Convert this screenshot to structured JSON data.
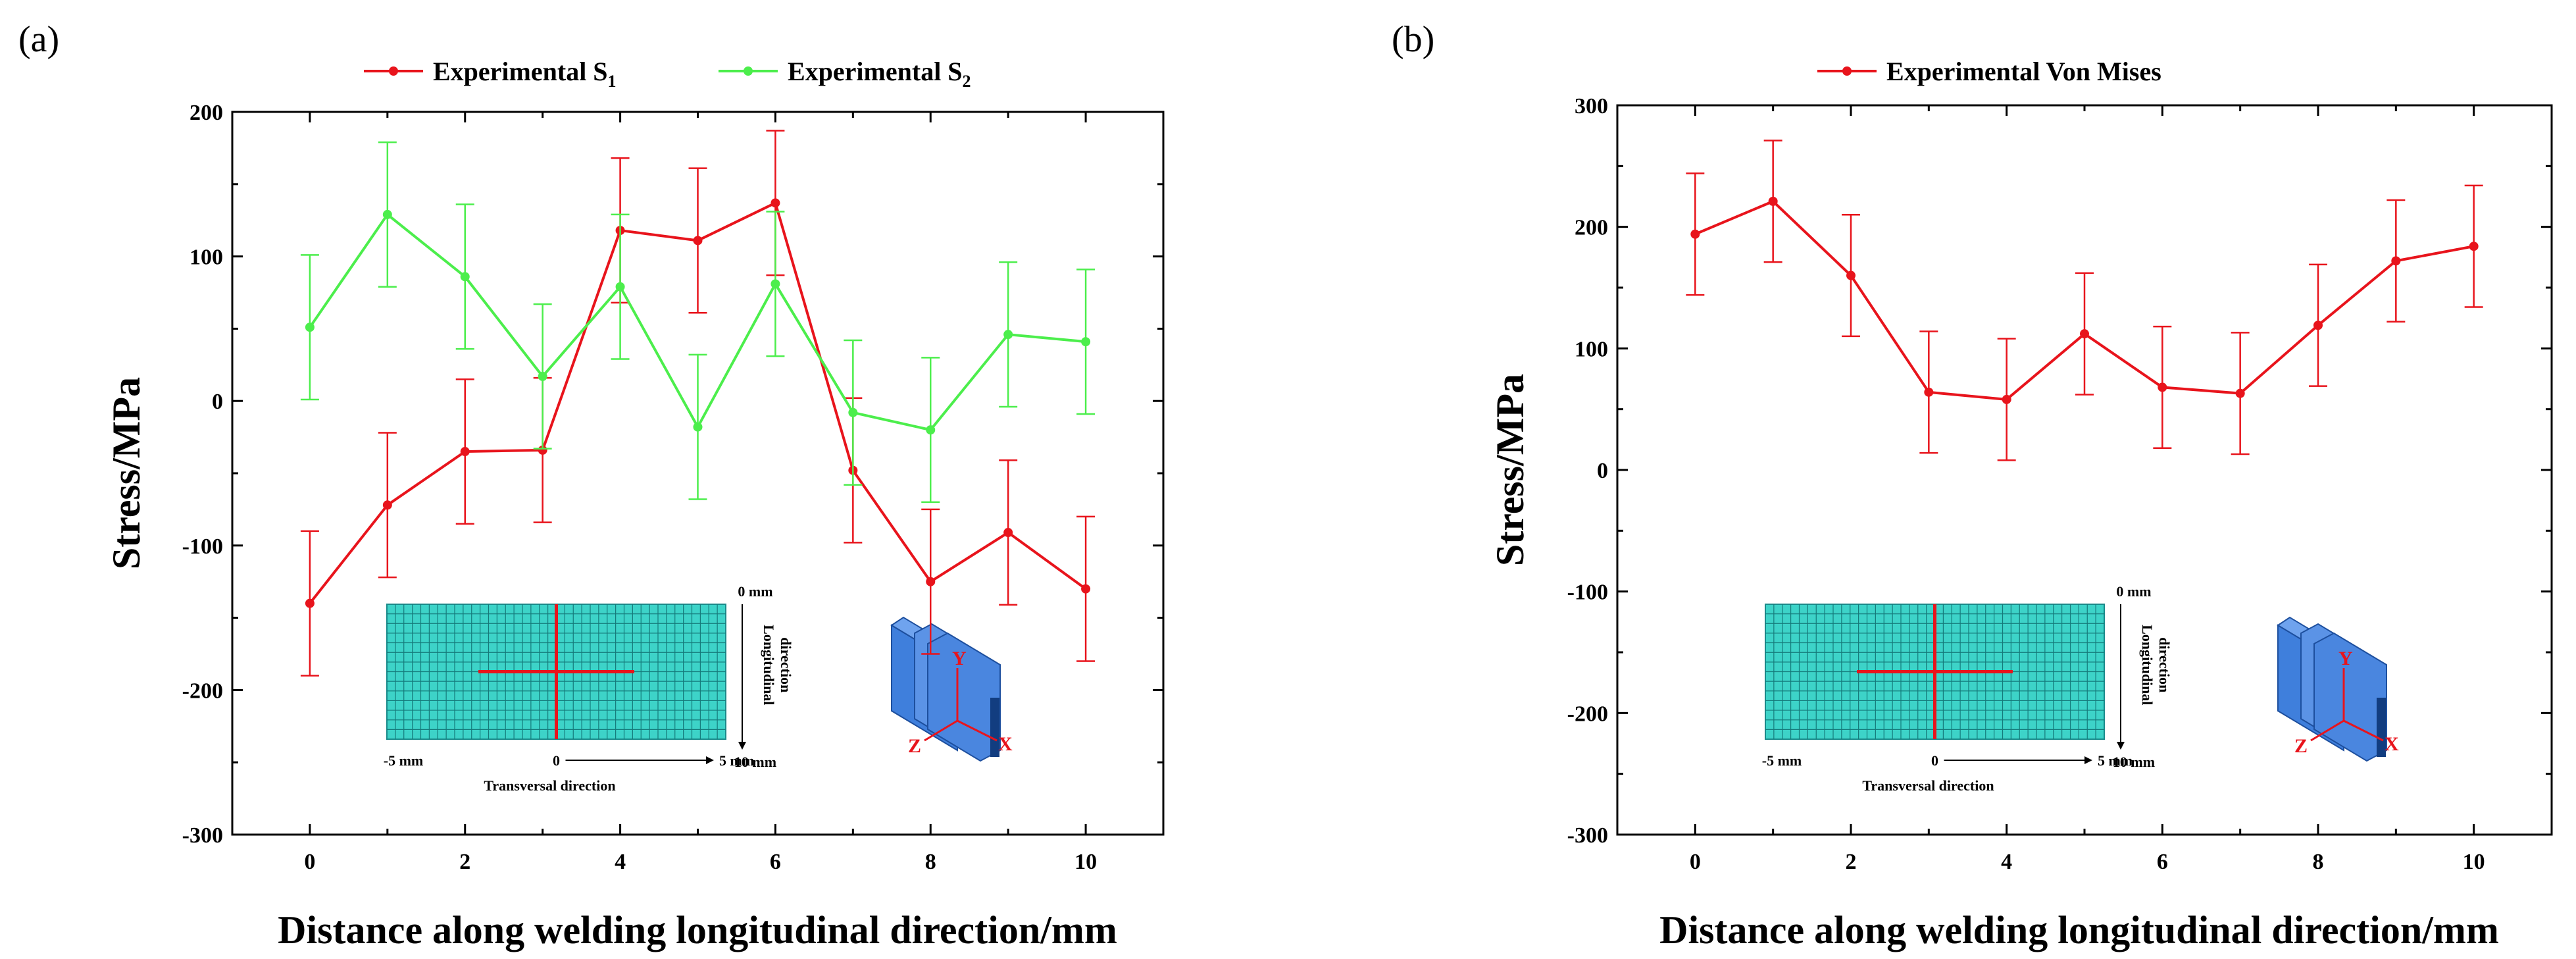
{
  "chart_data": [
    {
      "type": "line",
      "panel_label": "(a)",
      "xlabel": "Distance along welding longitudinal direction/mm",
      "ylabel": "Stress/MPa",
      "xlim": [
        -1.0,
        11.0
      ],
      "ylim": [
        -300,
        200
      ],
      "xticks": [
        0,
        2,
        4,
        6,
        8,
        10
      ],
      "yticks": [
        -300,
        -200,
        -100,
        0,
        100,
        200
      ],
      "x": [
        0,
        1,
        2,
        3,
        4,
        5,
        6,
        7,
        8,
        9,
        10
      ],
      "error": 50,
      "series": [
        {
          "name": "Experimental S",
          "subscript": "1",
          "color": "#e8141c",
          "values": [
            -140,
            -72,
            -35,
            -34,
            118,
            111,
            137,
            -48,
            -125,
            -91,
            -130
          ]
        },
        {
          "name": "Experimental S",
          "subscript": "2",
          "color": "#4cee4c",
          "values": [
            51,
            129,
            86,
            17,
            79,
            -18,
            81,
            -8,
            -20,
            46,
            41
          ]
        }
      ],
      "inset": {
        "top_label": "0 mm",
        "right_label_line1": "Longitudinal",
        "right_label_line2": "direction",
        "bottom_right_label": "10 mm",
        "bottom_left_label": "-5 mm",
        "bottom_mid_label": "0",
        "bottom_5_label": "5 mm",
        "bottom_caption": "Transversal direction",
        "mesh_color": "#3dd3c8",
        "line_color": "#e8141c",
        "axis_y": "Y",
        "axis_z": "Z",
        "axis_x": "X",
        "beam_color": "#3f7fdc"
      }
    },
    {
      "type": "line",
      "panel_label": "(b)",
      "xlabel": "Distance along welding longitudinal direction/mm",
      "ylabel": "Stress/MPa",
      "xlim": [
        -1.0,
        11.0
      ],
      "ylim": [
        -300,
        300
      ],
      "xticks": [
        0,
        2,
        4,
        6,
        8,
        10
      ],
      "yticks": [
        -300,
        -200,
        -100,
        0,
        100,
        200,
        300
      ],
      "x": [
        0,
        1,
        2,
        3,
        4,
        5,
        6,
        7,
        8,
        9,
        10
      ],
      "error": 50,
      "series": [
        {
          "name": "Experimental Von Mises",
          "subscript": "",
          "color": "#e8141c",
          "values": [
            194,
            221,
            160,
            64,
            58,
            112,
            68,
            63,
            119,
            172,
            184
          ]
        }
      ],
      "inset": {
        "top_label": "0 mm",
        "right_label_line1": "Longitudinal",
        "right_label_line2": "direction",
        "bottom_right_label": "10 mm",
        "bottom_left_label": "-5 mm",
        "bottom_mid_label": "0",
        "bottom_5_label": "5 mm",
        "bottom_caption": "Transversal direction",
        "mesh_color": "#3dd3c8",
        "line_color": "#e8141c",
        "axis_y": "Y",
        "axis_z": "Z",
        "axis_x": "X",
        "beam_color": "#3f7fdc"
      }
    }
  ]
}
